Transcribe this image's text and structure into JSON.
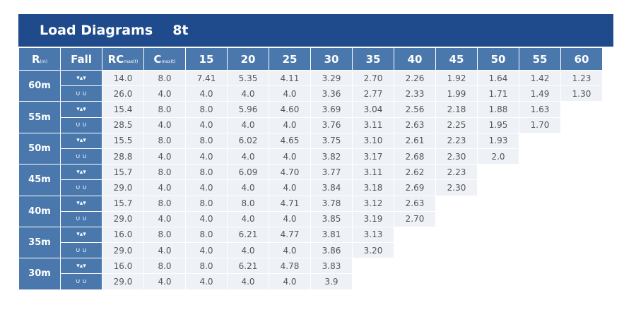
{
  "title": "Load Diagrams",
  "capacity": "8t",
  "header": {
    "r": "R",
    "r_sub": "(m)",
    "fall": "Fall",
    "rc": "RC",
    "rc_sub": "max(t)",
    "c": "C",
    "c_sub": "max(t)",
    "distances": [
      "15",
      "20",
      "25",
      "30",
      "35",
      "40",
      "45",
      "50",
      "55",
      "60"
    ]
  },
  "fall_icons": [
    "four-fall-hook-icon",
    "two-fall-hook-icon"
  ],
  "groups": [
    {
      "radius": "60m",
      "rows": [
        {
          "rc": "14.0",
          "c": "8.0",
          "values": [
            "7.41",
            "5.35",
            "4.11",
            "3.29",
            "2.70",
            "2.26",
            "1.92",
            "1.64",
            "1.42",
            "1.23"
          ]
        },
        {
          "rc": "26.0",
          "c": "4.0",
          "values": [
            "4.0",
            "4.0",
            "4.0",
            "3.36",
            "2.77",
            "2.33",
            "1.99",
            "1.71",
            "1.49",
            "1.30"
          ]
        }
      ]
    },
    {
      "radius": "55m",
      "rows": [
        {
          "rc": "15.4",
          "c": "8.0",
          "values": [
            "8.0",
            "5.96",
            "4.60",
            "3.69",
            "3.04",
            "2.56",
            "2.18",
            "1.88",
            "1.63"
          ]
        },
        {
          "rc": "28.5",
          "c": "4.0",
          "values": [
            "4.0",
            "4.0",
            "4.0",
            "3.76",
            "3.11",
            "2.63",
            "2.25",
            "1.95",
            "1.70"
          ]
        }
      ]
    },
    {
      "radius": "50m",
      "rows": [
        {
          "rc": "15.5",
          "c": "8.0",
          "values": [
            "8.0",
            "6.02",
            "4.65",
            "3.75",
            "3.10",
            "2.61",
            "2.23",
            "1.93"
          ]
        },
        {
          "rc": "28.8",
          "c": "4.0",
          "values": [
            "4.0",
            "4.0",
            "4.0",
            "3.82",
            "3.17",
            "2.68",
            "2.30",
            "2.0"
          ]
        }
      ]
    },
    {
      "radius": "45m",
      "rows": [
        {
          "rc": "15.7",
          "c": "8.0",
          "values": [
            "8.0",
            "6.09",
            "4.70",
            "3.77",
            "3.11",
            "2.62",
            "2.23"
          ]
        },
        {
          "rc": "29.0",
          "c": "4.0",
          "values": [
            "4.0",
            "4.0",
            "4.0",
            "3.84",
            "3.18",
            "2.69",
            "2.30"
          ]
        }
      ]
    },
    {
      "radius": "40m",
      "rows": [
        {
          "rc": "15.7",
          "c": "8.0",
          "values": [
            "8.0",
            "8.0",
            "4.71",
            "3.78",
            "3.12",
            "2.63"
          ]
        },
        {
          "rc": "29.0",
          "c": "4.0",
          "values": [
            "4.0",
            "4.0",
            "4.0",
            "3.85",
            "3.19",
            "2.70"
          ]
        }
      ]
    },
    {
      "radius": "35m",
      "rows": [
        {
          "rc": "16.0",
          "c": "8.0",
          "values": [
            "8.0",
            "6.21",
            "4.77",
            "3.81",
            "3.13"
          ]
        },
        {
          "rc": "29.0",
          "c": "4.0",
          "values": [
            "4.0",
            "4.0",
            "4.0",
            "3.86",
            "3.20"
          ]
        }
      ]
    },
    {
      "radius": "30m",
      "rows": [
        {
          "rc": "16.0",
          "c": "8.0",
          "values": [
            "8.0",
            "6.21",
            "4.78",
            "3.83"
          ]
        },
        {
          "rc": "29.0",
          "c": "4.0",
          "values": [
            "4.0",
            "4.0",
            "4.0",
            "3.9"
          ]
        }
      ]
    }
  ]
}
